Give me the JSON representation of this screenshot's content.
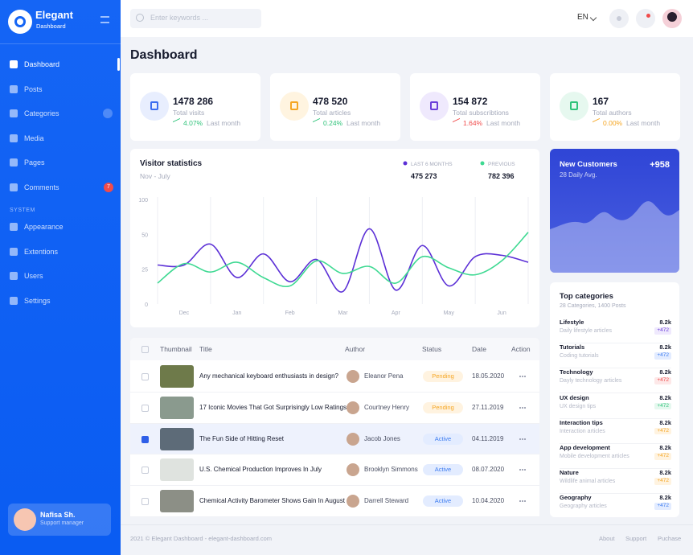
{
  "brand": {
    "name": "Elegant",
    "sub": "Dashboard"
  },
  "search_placeholder": "Enter keywords ...",
  "language": "EN",
  "sidebar": {
    "items": [
      {
        "label": "Dashboard",
        "active": true
      },
      {
        "label": "Posts"
      },
      {
        "label": "Categories",
        "expandable": true
      },
      {
        "label": "Media"
      },
      {
        "label": "Pages"
      },
      {
        "label": "Comments",
        "badge": 7
      }
    ],
    "section": "SYSTEM",
    "system_items": [
      {
        "label": "Appearance"
      },
      {
        "label": "Extentions"
      },
      {
        "label": "Users"
      },
      {
        "label": "Settings"
      }
    ]
  },
  "user": {
    "name": "Nafisa Sh.",
    "role": "Support manager"
  },
  "page_title": "Dashboard",
  "stats": [
    {
      "value": "1478 286",
      "label": "Total visits",
      "change": "4.07%",
      "period": "Last month",
      "color": "#3d6ef0",
      "bg": "#e8eefe",
      "change_color": "#2fc37a"
    },
    {
      "value": "478 520",
      "label": "Total articles",
      "change": "0.24%",
      "period": "Last month",
      "color": "#f5a623",
      "bg": "#fff4e0",
      "change_color": "#2fc37a"
    },
    {
      "value": "154 872",
      "label": "Total subscribtions",
      "change": "1.64%",
      "period": "Last month",
      "color": "#6b3fd9",
      "bg": "#efe9fd",
      "change_color": "#f04b4b"
    },
    {
      "value": "167",
      "label": "Total authors",
      "change": "0.00%",
      "period": "Last month",
      "color": "#2fc37a",
      "bg": "#e6f8ef",
      "change_color": "#f5a623"
    }
  ],
  "visitor_chart": {
    "type": "line",
    "title": "Visitor statistics",
    "subtitle": "Nov - July",
    "yticks": [
      0,
      25,
      50,
      100
    ],
    "x_labels": [
      "Dec",
      "Jan",
      "Feb",
      "Mar",
      "Apr",
      "May",
      "Jun"
    ],
    "grid": true,
    "series": [
      {
        "name": "LAST 6 MONTHS",
        "total": "475 273",
        "color": "#5b2fd6",
        "values": [
          28,
          28,
          43,
          19,
          36,
          16,
          32,
          9,
          58,
          10,
          42,
          13,
          34,
          35,
          30
        ]
      },
      {
        "name": "PREVIOUS",
        "total": "782 396",
        "color": "#3ed992",
        "values": [
          15,
          29,
          23,
          30,
          19,
          13,
          31,
          22,
          27,
          15,
          34,
          26,
          21,
          31,
          53
        ]
      }
    ]
  },
  "new_customers": {
    "title": "New Customers",
    "value": "+958",
    "subtitle": "28 Daily Avg."
  },
  "table": {
    "headers": [
      "Thumbnail",
      "Title",
      "Author",
      "Status",
      "Date",
      "Action"
    ],
    "rows": [
      {
        "title": "Any mechanical keyboard enthusiasts in design?",
        "author": "Eleanor Pena",
        "status": "Pending",
        "status_color": "#f5a623",
        "status_bg": "#fff3e0",
        "date": "18.05.2020",
        "checked": false,
        "thumb": "#6e7a4a"
      },
      {
        "title": "17 Iconic Movies That Got Surprisingly Low Ratings",
        "author": "Courtney Henry",
        "status": "Pending",
        "status_color": "#f5a623",
        "status_bg": "#fff3e0",
        "date": "27.11.2019",
        "checked": false,
        "thumb": "#8a9a8e"
      },
      {
        "title": "The Fun Side of Hitting Reset",
        "author": "Jacob Jones",
        "status": "Active",
        "status_color": "#3d7cf0",
        "status_bg": "#e3ecff",
        "date": "04.11.2019",
        "checked": true,
        "thumb": "#5d6b78"
      },
      {
        "title": "U.S. Chemical Production Improves In July",
        "author": "Brooklyn Simmons",
        "status": "Active",
        "status_color": "#3d7cf0",
        "status_bg": "#e3ecff",
        "date": "08.07.2020",
        "checked": false,
        "thumb": "#dfe3df"
      },
      {
        "title": "Chemical Activity Barometer Shows Gain In August",
        "author": "Darrell Steward",
        "status": "Active",
        "status_color": "#3d7cf0",
        "status_bg": "#e3ecff",
        "date": "10.04.2020",
        "checked": false,
        "thumb": "#8c8f86"
      }
    ]
  },
  "top_categories": {
    "title": "Top categories",
    "subtitle": "28 Categories, 1400 Posts",
    "items": [
      {
        "name": "Lifestyle",
        "desc": "Daily lifestyle articles",
        "value": "8.2k",
        "change": "+472",
        "color": "#6b3fd9",
        "bg": "#efe9fd"
      },
      {
        "name": "Tutorials",
        "desc": "Coding tutorials",
        "value": "8.2k",
        "change": "+472",
        "color": "#3d7cf0",
        "bg": "#e3ecff"
      },
      {
        "name": "Technology",
        "desc": "Dayly technology articles",
        "value": "8.2k",
        "change": "+472",
        "color": "#f04b4b",
        "bg": "#fde8e8"
      },
      {
        "name": "UX design",
        "desc": "UX design tips",
        "value": "8.2k",
        "change": "+472",
        "color": "#2fc37a",
        "bg": "#e6f8ef"
      },
      {
        "name": "Interaction tips",
        "desc": "Interaction articles",
        "value": "8.2k",
        "change": "+472",
        "color": "#f5a623",
        "bg": "#fff3e0"
      },
      {
        "name": "App development",
        "desc": "Mobile development articles",
        "value": "8.2k",
        "change": "+472",
        "color": "#f5a623",
        "bg": "#fff3e0"
      },
      {
        "name": "Nature",
        "desc": "Wildlife animal articles",
        "value": "8.2k",
        "change": "+472",
        "color": "#f5a623",
        "bg": "#fff3e0"
      },
      {
        "name": "Geography",
        "desc": "Geography articles",
        "value": "8.2k",
        "change": "+472",
        "color": "#3d7cf0",
        "bg": "#e3ecff"
      }
    ]
  },
  "footer": {
    "copyright": "2021 © Elegant Dashboard - elegant-dashboard.com",
    "links": [
      "About",
      "Support",
      "Puchase"
    ]
  }
}
